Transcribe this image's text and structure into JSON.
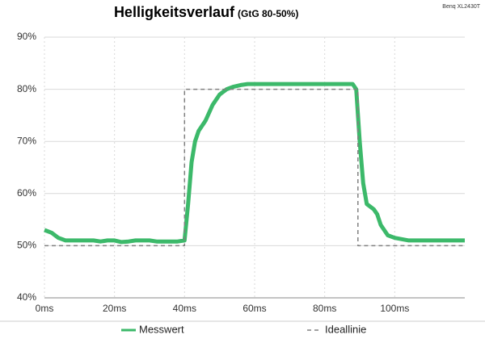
{
  "chart_data": {
    "type": "line",
    "title": "Helligkeitsverlauf",
    "subtitle": "(GtG 80-50%)",
    "annotation": "Benq XL2430T",
    "xlim": [
      0,
      120
    ],
    "ylim": [
      40,
      90
    ],
    "xticks": [
      {
        "value": 0,
        "label": "0ms"
      },
      {
        "value": 20,
        "label": "20ms"
      },
      {
        "value": 40,
        "label": "40ms"
      },
      {
        "value": 60,
        "label": "60ms"
      },
      {
        "value": 80,
        "label": "80ms"
      },
      {
        "value": 100,
        "label": "100ms"
      }
    ],
    "yticks": [
      {
        "value": 40,
        "label": "40%"
      },
      {
        "value": 50,
        "label": "50%"
      },
      {
        "value": 60,
        "label": "60%"
      },
      {
        "value": 70,
        "label": "70%"
      },
      {
        "value": 80,
        "label": "80%"
      },
      {
        "value": 90,
        "label": "90%"
      }
    ],
    "grid": true,
    "series": [
      {
        "name": "Messwert",
        "color": "#3cb96a",
        "dashed": false,
        "x": [
          0,
          2,
          4,
          6,
          8,
          10,
          12,
          14,
          16,
          18,
          20,
          22,
          24,
          26,
          28,
          30,
          32,
          34,
          36,
          38,
          40,
          41,
          42,
          43,
          44,
          46,
          48,
          50,
          52,
          54,
          56,
          58,
          60,
          64,
          68,
          72,
          76,
          80,
          84,
          88,
          89,
          90,
          91,
          92,
          94,
          95,
          96,
          98,
          100,
          104,
          108,
          112,
          116,
          120
        ],
        "values": [
          53,
          52.5,
          51.5,
          51,
          51,
          51,
          51,
          51,
          50.8,
          51,
          51,
          50.7,
          50.8,
          51,
          51,
          51,
          50.8,
          50.8,
          50.8,
          50.8,
          51,
          58,
          66,
          70,
          72,
          74,
          77,
          79,
          80,
          80.5,
          80.8,
          81,
          81,
          81,
          81,
          81,
          81,
          81,
          81,
          81,
          80,
          70,
          62,
          58,
          57,
          56,
          54,
          52,
          51.5,
          51,
          51,
          51,
          51,
          51
        ]
      },
      {
        "name": "Ideallinie",
        "color": "#808080",
        "dashed": true,
        "x": [
          0,
          40,
          40,
          89.5,
          89.5,
          120
        ],
        "values": [
          50,
          50,
          80,
          80,
          50,
          50
        ]
      }
    ]
  }
}
